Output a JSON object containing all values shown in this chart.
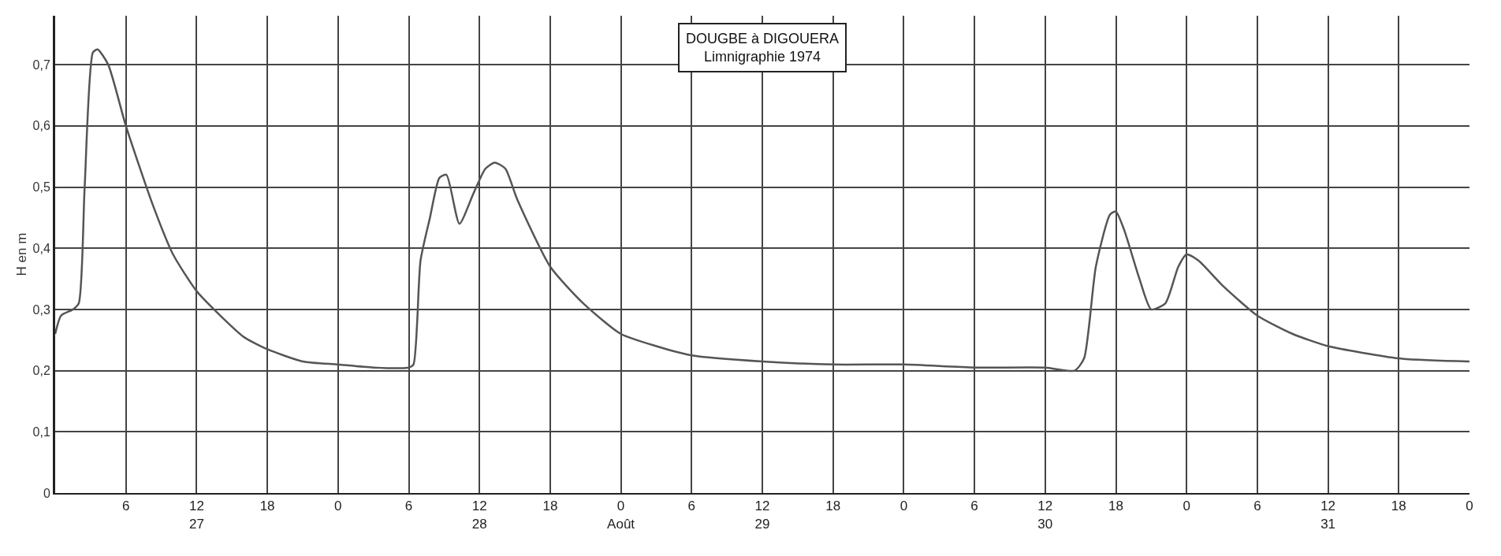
{
  "chart_data": {
    "type": "line",
    "title": "DOUGBE à DIGOUERA",
    "subtitle": "Limnigraphie 1974",
    "ylabel": "H en m",
    "series": [
      {
        "color": "#555555",
        "x": [
          "1974-08-27T00:00",
          "1974-08-27T00:30",
          "1974-08-27T01:30",
          "1974-08-27T02:00",
          "1974-08-27T02:30",
          "1974-08-27T03:12",
          "1974-08-27T03:36",
          "1974-08-27T04:30",
          "1974-08-27T06:00",
          "1974-08-27T08:18",
          "1974-08-27T10:00",
          "1974-08-27T12:00",
          "1974-08-27T14:00",
          "1974-08-27T16:00",
          "1974-08-27T18:00",
          "1974-08-27T21:00",
          "1974-08-28T00:00",
          "1974-08-28T03:00",
          "1974-08-28T06:00",
          "1974-08-28T06:24",
          "1974-08-28T07:00",
          "1974-08-28T07:48",
          "1974-08-28T08:36",
          "1974-08-28T09:12",
          "1974-08-28T10:18",
          "1974-08-28T11:30",
          "1974-08-28T12:30",
          "1974-08-28T13:18",
          "1974-08-28T14:12",
          "1974-08-28T15:12",
          "1974-08-28T18:00",
          "1974-08-28T20:48",
          "1974-08-29T00:00",
          "1974-08-29T03:00",
          "1974-08-29T06:00",
          "1974-08-29T12:00",
          "1974-08-29T18:00",
          "1974-08-30T00:00",
          "1974-08-30T06:00",
          "1974-08-30T12:00",
          "1974-08-30T14:30",
          "1974-08-30T15:18",
          "1974-08-30T16:18",
          "1974-08-30T17:30",
          "1974-08-30T18:00",
          "1974-08-30T18:42",
          "1974-08-30T20:00",
          "1974-08-30T21:00",
          "1974-08-30T22:12",
          "1974-08-30T23:18",
          "1974-08-31T00:00",
          "1974-08-31T01:00",
          "1974-08-31T03:00",
          "1974-08-31T06:00",
          "1974-08-31T09:00",
          "1974-08-31T12:00",
          "1974-08-31T18:00",
          "1974-09-01T00:00"
        ],
        "values": [
          0.26,
          0.29,
          0.3,
          0.31,
          0.5,
          0.72,
          0.725,
          0.7,
          0.6,
          0.47,
          0.39,
          0.33,
          0.29,
          0.255,
          0.235,
          0.215,
          0.21,
          0.205,
          0.205,
          0.21,
          0.38,
          0.45,
          0.515,
          0.52,
          0.44,
          0.49,
          0.53,
          0.54,
          0.53,
          0.48,
          0.37,
          0.31,
          0.26,
          0.24,
          0.225,
          0.215,
          0.21,
          0.21,
          0.205,
          0.205,
          0.2,
          0.22,
          0.37,
          0.455,
          0.46,
          0.43,
          0.35,
          0.3,
          0.31,
          0.37,
          0.39,
          0.38,
          0.34,
          0.29,
          0.26,
          0.24,
          0.22,
          0.215
        ]
      }
    ],
    "xlim": [
      "1974-08-27T00:00",
      "1974-09-01T00:00"
    ],
    "ylim": [
      0,
      0.78
    ],
    "xticks": [
      {
        "value": "1974-08-27T00:00",
        "label": null
      },
      {
        "value": "1974-08-27T06:00",
        "label": "6"
      },
      {
        "value": "1974-08-27T12:00",
        "label": "12\n27"
      },
      {
        "value": "1974-08-27T18:00",
        "label": "18"
      },
      {
        "value": "1974-08-28T00:00",
        "label": "0"
      },
      {
        "value": "1974-08-28T06:00",
        "label": "6"
      },
      {
        "value": "1974-08-28T12:00",
        "label": "12\n28"
      },
      {
        "value": "1974-08-28T18:00",
        "label": "18"
      },
      {
        "value": "1974-08-29T00:00",
        "label": "0\nAoût"
      },
      {
        "value": "1974-08-29T06:00",
        "label": "6"
      },
      {
        "value": "1974-08-29T12:00",
        "label": "12\n29"
      },
      {
        "value": "1974-08-29T18:00",
        "label": "18"
      },
      {
        "value": "1974-08-30T00:00",
        "label": "0"
      },
      {
        "value": "1974-08-30T06:00",
        "label": "6"
      },
      {
        "value": "1974-08-30T12:00",
        "label": "12\n30"
      },
      {
        "value": "1974-08-30T18:00",
        "label": "18"
      },
      {
        "value": "1974-08-31T00:00",
        "label": "0"
      },
      {
        "value": "1974-08-31T06:00",
        "label": "6"
      },
      {
        "value": "1974-08-31T12:00",
        "label": "12\n31"
      },
      {
        "value": "1974-08-31T18:00",
        "label": "18"
      },
      {
        "value": "1974-09-01T00:00",
        "label": "0"
      }
    ],
    "yticks": [
      0,
      {
        "value": 0.1,
        "label": "0,1"
      },
      {
        "value": 0.2,
        "label": "0,2"
      },
      {
        "value": 0.3,
        "label": "0,3"
      },
      {
        "value": 0.4,
        "label": "0,4"
      },
      {
        "value": 0.5,
        "label": "0,5"
      },
      {
        "value": 0.6,
        "label": "0,6"
      },
      {
        "value": 0.7,
        "label": "0,7"
      }
    ],
    "grid": true,
    "marker": "none",
    "line_style": "solid"
  }
}
